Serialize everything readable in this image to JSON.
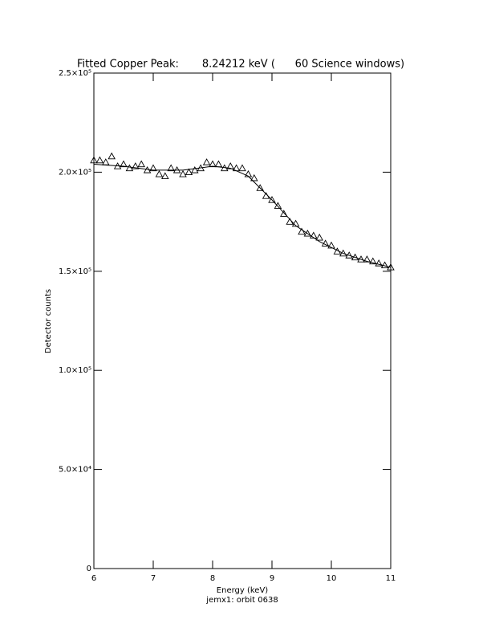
{
  "chart_data": {
    "type": "scatter",
    "title": "Fitted Copper Peak:       8.24212 keV (      60 Science windows)",
    "x_label": "Energy (keV)",
    "subtitle": "jemx1: orbit 0638",
    "y_label": "Detector counts",
    "xlim": [
      6,
      11
    ],
    "xticks": [
      6,
      7,
      8,
      9,
      10,
      11
    ],
    "ylim": [
      0,
      250000
    ],
    "yticks": [
      {
        "value": 0,
        "label": "0"
      },
      {
        "value": 50000,
        "label": "5.0×10⁴"
      },
      {
        "value": 100000,
        "label": "1.0×10⁵"
      },
      {
        "value": 150000,
        "label": "1.5×10⁵"
      },
      {
        "value": 200000,
        "label": "2.0×10⁵"
      },
      {
        "value": 250000,
        "label": "2.5×10⁵"
      }
    ],
    "grid": false,
    "series": [
      {
        "marker": "triangle",
        "color": "#000000",
        "x": [
          6.0,
          6.1,
          6.2,
          6.3,
          6.4,
          6.5,
          6.6,
          6.7,
          6.8,
          6.9,
          7.0,
          7.1,
          7.2,
          7.3,
          7.4,
          7.5,
          7.6,
          7.7,
          7.8,
          7.9,
          8.0,
          8.1,
          8.2,
          8.3,
          8.4,
          8.5,
          8.6,
          8.7,
          8.8,
          8.9,
          9.0,
          9.1,
          9.2,
          9.3,
          9.4,
          9.5,
          9.6,
          9.7,
          9.8,
          9.9,
          10.0,
          10.1,
          10.2,
          10.3,
          10.4,
          10.5,
          10.6,
          10.7,
          10.8,
          10.9,
          11.0
        ],
        "values": [
          206000,
          206000,
          205000,
          208000,
          203000,
          204000,
          202000,
          203000,
          204000,
          201000,
          202000,
          199000,
          198000,
          202000,
          201000,
          199000,
          200000,
          201000,
          202000,
          205000,
          204000,
          204000,
          202000,
          203000,
          202000,
          202000,
          199000,
          197000,
          192000,
          188000,
          186000,
          183000,
          179000,
          175000,
          174000,
          170000,
          169000,
          168000,
          167000,
          164000,
          163000,
          160000,
          159000,
          158000,
          157000,
          156000,
          156000,
          155000,
          154000,
          153000,
          152000
        ]
      },
      {
        "marker": "line",
        "color": "#000000",
        "x": [
          6,
          6.5,
          7,
          7.5,
          8,
          8.3,
          8.6,
          9,
          9.4,
          9.8,
          10.2,
          10.6,
          11
        ],
        "values": [
          204000,
          203000,
          201000,
          201000,
          203000,
          202000,
          198000,
          186000,
          173000,
          165000,
          159000,
          155000,
          152000
        ]
      }
    ]
  }
}
